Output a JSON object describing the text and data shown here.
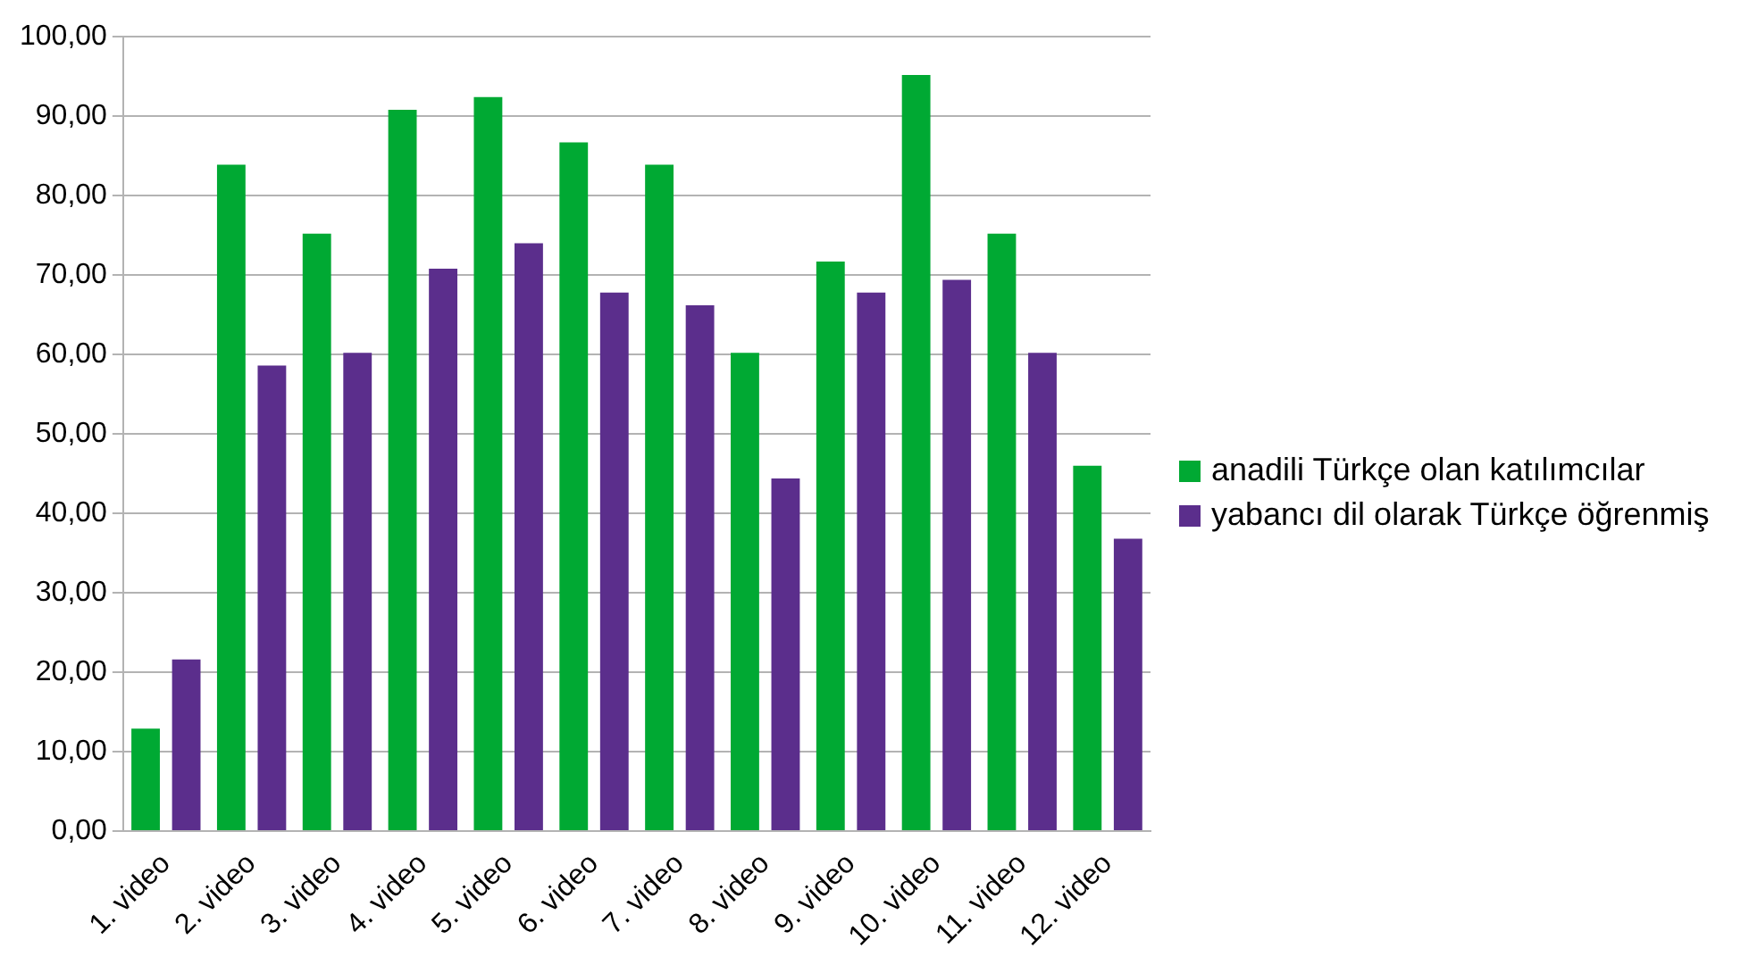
{
  "chart_data": {
    "type": "bar",
    "categories": [
      "1. video",
      "2. video",
      "3. video",
      "4. video",
      "5. video",
      "6. video",
      "7. video",
      "8. video",
      "9. video",
      "10. video",
      "11. video",
      "12. video"
    ],
    "series": [
      {
        "name": "anadili Türkçe olan katılımcılar",
        "color": "#00a933",
        "values": [
          12.9,
          83.9,
          75.2,
          90.8,
          92.4,
          86.7,
          83.9,
          60.2,
          71.7,
          95.2,
          75.2,
          46.0
        ]
      },
      {
        "name": "yabancı dil olarak Türkçe öğrenmiş",
        "color": "#5b2e8c",
        "values": [
          21.6,
          58.6,
          60.2,
          70.8,
          74.0,
          67.8,
          66.2,
          44.4,
          67.8,
          69.4,
          60.2,
          36.8
        ]
      }
    ],
    "ylim": [
      0,
      100
    ],
    "yticks": [
      {
        "value": 0,
        "label": "0,00"
      },
      {
        "value": 10,
        "label": "10,00"
      },
      {
        "value": 20,
        "label": "20,00"
      },
      {
        "value": 30,
        "label": "30,00"
      },
      {
        "value": 40,
        "label": "40,00"
      },
      {
        "value": 50,
        "label": "50,00"
      },
      {
        "value": 60,
        "label": "60,00"
      },
      {
        "value": 70,
        "label": "70,00"
      },
      {
        "value": 80,
        "label": "80,00"
      },
      {
        "value": 90,
        "label": "90,00"
      },
      {
        "value": 100,
        "label": "100,00"
      }
    ],
    "grid": "y",
    "legend": "right"
  }
}
